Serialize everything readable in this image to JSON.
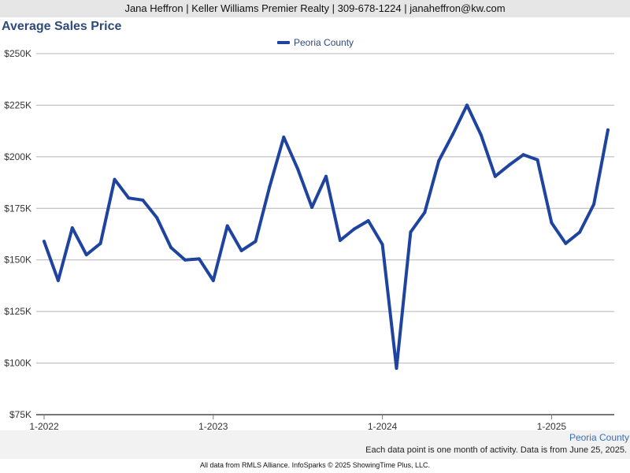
{
  "header": {
    "contact": "Jana Heffron | Keller Williams Premier Realty | 309-678-1224 | janaheffron@kw.com"
  },
  "region_label": "Peoria County",
  "note": "Each data point is one month of activity. Data is from June 25, 2025.",
  "credit": "All data from RMLS Alliance. InfoSparks © 2025 ShowingTime Plus, LLC.",
  "colors": {
    "series": "#1f44a0",
    "title": "#2e4a7a",
    "grid": "#b4b4b4"
  },
  "chart_data": {
    "type": "line",
    "title": "Average Sales Price",
    "xlabel": "",
    "ylabel": "",
    "ylim": [
      75000,
      250000
    ],
    "y_ticks": [
      75000,
      100000,
      125000,
      150000,
      175000,
      200000,
      225000,
      250000
    ],
    "y_tick_labels": [
      "$75K",
      "$100K",
      "$125K",
      "$150K",
      "$175K",
      "$200K",
      "$225K",
      "$250K"
    ],
    "x_ticks": [
      "2022-01",
      "2023-01",
      "2024-01",
      "2025-01"
    ],
    "x_tick_labels": [
      "1-2022",
      "1-2023",
      "1-2024",
      "1-2025"
    ],
    "grid": true,
    "legend_position": "top-center",
    "series": [
      {
        "name": "Peoria County",
        "x": [
          "2022-01",
          "2022-02",
          "2022-03",
          "2022-04",
          "2022-05",
          "2022-06",
          "2022-07",
          "2022-08",
          "2022-09",
          "2022-10",
          "2022-11",
          "2022-12",
          "2023-01",
          "2023-02",
          "2023-03",
          "2023-04",
          "2023-05",
          "2023-06",
          "2023-07",
          "2023-08",
          "2023-09",
          "2023-10",
          "2023-11",
          "2023-12",
          "2024-01",
          "2024-02",
          "2024-03",
          "2024-04",
          "2024-05",
          "2024-06",
          "2024-07",
          "2024-08",
          "2024-09",
          "2024-10",
          "2024-11",
          "2024-12",
          "2025-01",
          "2025-02",
          "2025-03",
          "2025-04",
          "2025-05"
        ],
        "values": [
          159000,
          140000,
          165500,
          152500,
          158000,
          189000,
          180000,
          179000,
          170500,
          156000,
          150000,
          150500,
          140000,
          166500,
          154500,
          159000,
          185500,
          209500,
          194000,
          175500,
          190500,
          159500,
          165000,
          169000,
          157500,
          97500,
          163500,
          173000,
          198000,
          211000,
          225000,
          210500,
          190500,
          196000,
          201000,
          198500,
          168000,
          158000,
          163500,
          177000,
          213000
        ]
      }
    ]
  }
}
